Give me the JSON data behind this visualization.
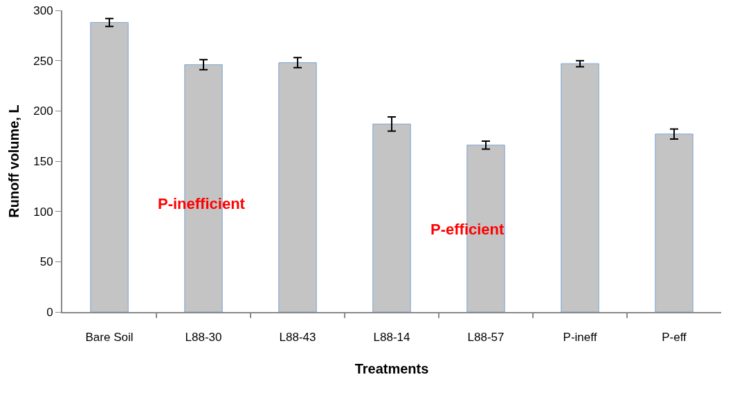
{
  "chart_data": {
    "type": "bar",
    "xlabel": "Treatments",
    "ylabel": "Runoff volume, L",
    "categories": [
      "Bare Soil",
      "L88-30",
      "L88-43",
      "L88-14",
      "L88-57",
      "P-ineff",
      "P-eff"
    ],
    "values": [
      288,
      246,
      248,
      187,
      166,
      247,
      177
    ],
    "errors": [
      4,
      5,
      5,
      7,
      4,
      3,
      5
    ],
    "color": "#c4c4c4",
    "ylim": [
      0,
      300
    ],
    "yticks": [
      0,
      50,
      100,
      150,
      200,
      250,
      300
    ],
    "grid": false,
    "annotations": [
      "P-inefficient",
      "P-efficient"
    ]
  }
}
